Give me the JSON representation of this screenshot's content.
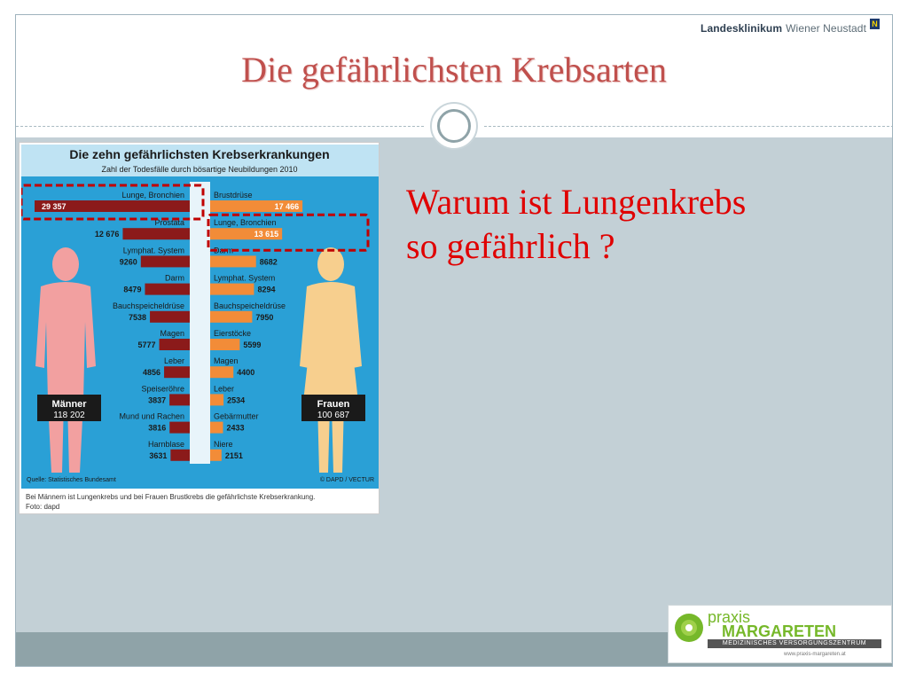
{
  "slide": {
    "brand_name": "Landesklinikum",
    "brand_sub": "Wiener Neustadt",
    "brand_flag": "N",
    "title": "Die gefährlichsten Krebsarten",
    "question_line1": "Warum ist Lungenkrebs",
    "question_line2": "so gefährlich ?",
    "logo_praxis": "praxis",
    "logo_margareten": "MARGARETEN",
    "logo_bar": "MEDIZINISCHES VERSORGUNGSZENTRUM",
    "logo_web": "www.praxis-margareten.at"
  },
  "colors": {
    "title": "#c0504d",
    "question": "#e00000",
    "men_bar": "#8b1a1a",
    "women_bar": "#f28c38",
    "chart_bg": "#2aa0d6",
    "highlight": "#c00000"
  },
  "chart_data": {
    "type": "bar",
    "title": "Die zehn gefährlichsten Krebserkrankungen",
    "subtitle": "Zahl der Todesfälle durch bösartige Neubildungen 2010",
    "men": {
      "label": "Männer",
      "total": "118 202",
      "categories": [
        "Lunge, Bronchien",
        "Prostata",
        "Lymphat. System",
        "Darm",
        "Bauchspeicheldrüse",
        "Magen",
        "Leber",
        "Speiseröhre",
        "Mund und Rachen",
        "Harnblase"
      ],
      "values": [
        29357,
        12676,
        9260,
        8479,
        7538,
        5777,
        4856,
        3837,
        3816,
        3631
      ],
      "labels": [
        "29 357",
        "12 676",
        "9260",
        "8479",
        "7538",
        "5777",
        "4856",
        "3837",
        "3816",
        "3631"
      ]
    },
    "women": {
      "label": "Frauen",
      "total": "100 687",
      "categories": [
        "Brustdrüse",
        "Lunge, Bronchien",
        "Darm",
        "Lymphat. System",
        "Bauchspeicheldrüse",
        "Eierstöcke",
        "Magen",
        "Leber",
        "Gebärmutter",
        "Niere"
      ],
      "values": [
        17466,
        13615,
        8682,
        8294,
        7950,
        5599,
        4400,
        2534,
        2433,
        2151
      ],
      "labels": [
        "17 466",
        "13 615",
        "8682",
        "8294",
        "7950",
        "5599",
        "4400",
        "2534",
        "2433",
        "2151"
      ]
    },
    "source": "Quelle: Statistisches Bundesamt",
    "credit": "© DAPD / VECTUR",
    "caption_line1": "Bei Männern ist Lungenkrebs und bei Frauen Brustkrebs die gefährlichste Krebserkrankung.",
    "caption_line2": "Foto: dapd"
  }
}
